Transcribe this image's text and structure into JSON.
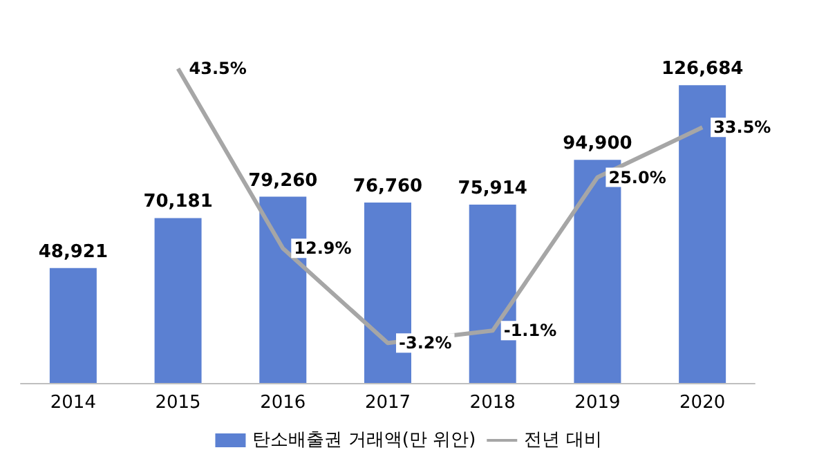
{
  "chart_data": {
    "type": "bar",
    "categories": [
      "2014",
      "2015",
      "2016",
      "2017",
      "2018",
      "2019",
      "2020"
    ],
    "series": [
      {
        "name": "탄소배출권 거래액(만 위안)",
        "color": "#5b80d2",
        "values": [
          48921,
          70181,
          79260,
          76760,
          75914,
          94900,
          126684
        ],
        "value_labels": [
          "48,921",
          "70,181",
          "79,260",
          "76,760",
          "75,914",
          "94,900",
          "126,684"
        ]
      },
      {
        "name": "전년 대비",
        "type": "line",
        "axis": "y2",
        "color": "#a6a6a6",
        "values": [
          null,
          43.5,
          12.9,
          -3.2,
          -1.1,
          25.0,
          33.5
        ],
        "value_labels": [
          null,
          "43.5%",
          "12.9%",
          "-3.2%",
          "-1.1%",
          "25.0%",
          "33.5%"
        ]
      }
    ],
    "legend": "bottom",
    "tick_labels": "x",
    "grid": false,
    "marker": "none"
  }
}
